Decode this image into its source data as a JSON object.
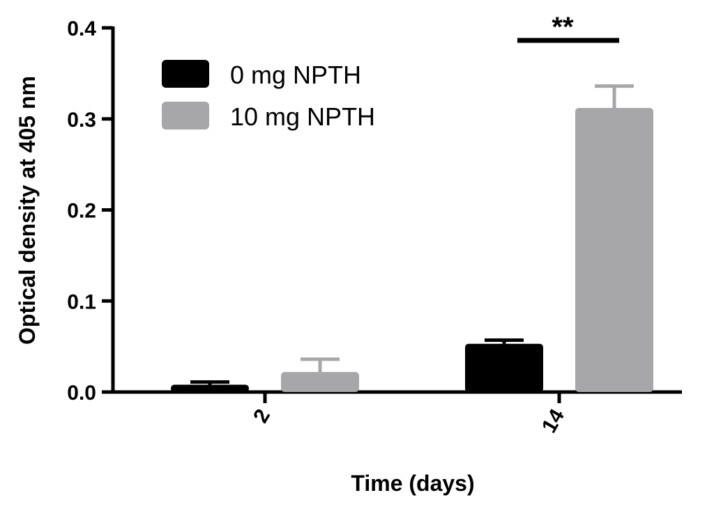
{
  "chart_data": {
    "type": "bar",
    "categories": [
      "2",
      "14"
    ],
    "series": [
      {
        "name": "0 mg NPTH",
        "color": "#000000",
        "values": [
          0.008,
          0.053
        ],
        "errors": [
          0.003,
          0.004
        ]
      },
      {
        "name": "10 mg NPTH",
        "color": "#a7a7aa",
        "values": [
          0.022,
          0.312
        ],
        "errors": [
          0.014,
          0.024
        ]
      }
    ],
    "xlabel": "Time (days)",
    "ylabel": "Optical density at 405 nm",
    "ylim": [
      0,
      0.4
    ],
    "yticks": [
      "0.0",
      "0.1",
      "0.2",
      "0.3",
      "0.4"
    ],
    "legend_position": "top-left",
    "grid": false,
    "annotations": [
      {
        "text": "**",
        "category": "14"
      }
    ]
  }
}
